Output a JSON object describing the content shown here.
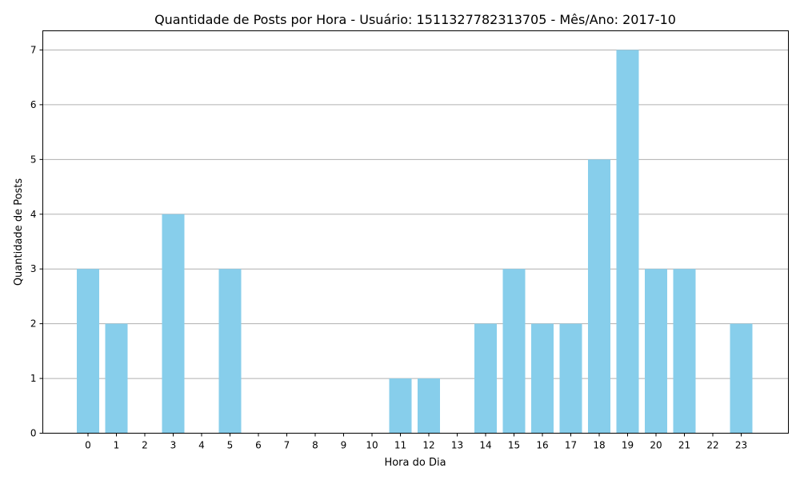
{
  "chart_data": {
    "type": "bar",
    "title": "Quantidade de Posts por Hora - Usuário: 1511327782313705 - Mês/Ano: 2017-10",
    "xlabel": "Hora do Dia",
    "ylabel": "Quantidade de Posts",
    "categories": [
      "0",
      "1",
      "2",
      "3",
      "4",
      "5",
      "6",
      "7",
      "8",
      "9",
      "10",
      "11",
      "12",
      "13",
      "14",
      "15",
      "16",
      "17",
      "18",
      "19",
      "20",
      "21",
      "22",
      "23"
    ],
    "values": [
      3,
      2,
      0,
      4,
      0,
      3,
      0,
      0,
      0,
      0,
      0,
      1,
      1,
      0,
      2,
      3,
      2,
      2,
      5,
      7,
      3,
      3,
      0,
      2
    ],
    "ylim": [
      0,
      7.35
    ],
    "yticks": [
      0,
      1,
      2,
      3,
      4,
      5,
      6,
      7
    ],
    "grid": "y-axis",
    "bar_color": "#87ceeb"
  }
}
